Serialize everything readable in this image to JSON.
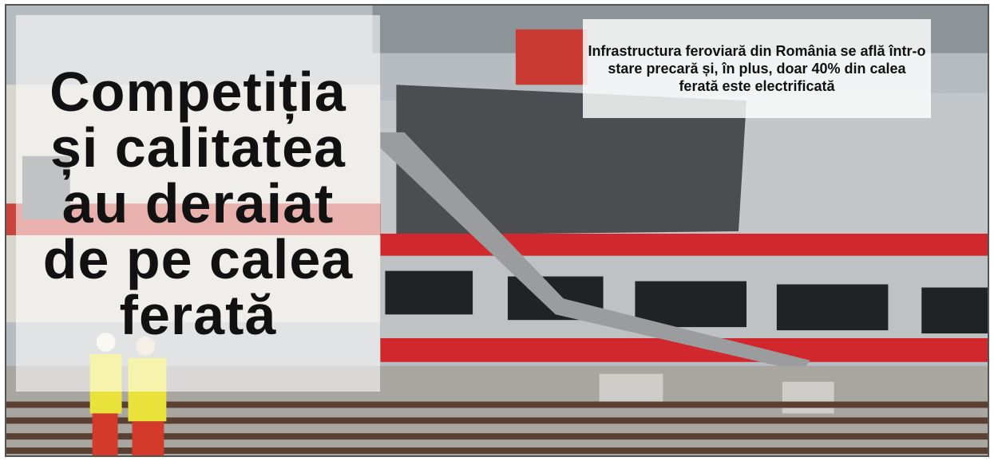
{
  "headline": "Competiția\nși calitatea\nau deraiat\nde pe calea\nferată",
  "caption": "Infrastructura feroviară din România se află într-o stare precară și, în plus, doar 40% din calea ferată este electrificată",
  "colors": {
    "train_silver": "#c4c7c9",
    "train_red": "#d0282c",
    "rail_brown": "#5a4032",
    "vest_yellow": "#e8e23a",
    "headline_text": "#111111"
  }
}
